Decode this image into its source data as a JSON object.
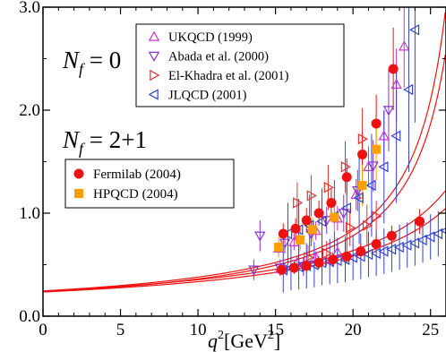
{
  "chart_data": {
    "type": "scatter",
    "xlabel": "q",
    "xlabel_sup": "2",
    "xlabel_unit_open": "[GeV",
    "xlabel_unit_sup": "2",
    "xlabel_unit_close": "]",
    "ylabel": "",
    "xlim": [
      0,
      26
    ],
    "ylim": [
      0,
      3.0
    ],
    "xticks": [
      0,
      5,
      10,
      15,
      20,
      25
    ],
    "xtick_labels": [
      "0",
      "5",
      "10",
      "15",
      "20",
      "25"
    ],
    "yticks": [
      0,
      1,
      2,
      3
    ],
    "ytick_labels": [
      "0.0",
      "1.0",
      "2.0",
      "3.0"
    ],
    "grid": false,
    "group_labels": {
      "nf0": {
        "main": "N",
        "sub": "f",
        "rest": " = 0"
      },
      "nf21": {
        "main": "N",
        "sub": "f",
        "rest": " = 2+1"
      }
    },
    "legend_top": {
      "position": "top-center",
      "items": [
        {
          "label": "UKQCD (1999)",
          "marker": "triangle-up",
          "color": "#cc33cc"
        },
        {
          "label": "Abada et al. (2000)",
          "marker": "triangle-down",
          "color": "#8833cc"
        },
        {
          "label": "El-Khadra et al. (2001)",
          "marker": "triangle-right",
          "color": "#e33333"
        },
        {
          "label": "JLQCD (2001)",
          "marker": "triangle-left",
          "color": "#3344cc"
        }
      ]
    },
    "legend_bottom": {
      "position": "center-left",
      "items": [
        {
          "label": "Fermilab (2004)",
          "marker": "circle",
          "color": "#ee1111"
        },
        {
          "label": "HPQCD (2004)",
          "marker": "square",
          "color": "#ffa000"
        }
      ]
    },
    "series": [
      {
        "name": "UKQCD (1999)",
        "marker": "triangle-up",
        "color": "#cc33cc",
        "points": [
          {
            "x": 15.2,
            "y": 0.66,
            "err": 0.07
          },
          {
            "x": 15.3,
            "y": 0.46,
            "err": 0.05
          },
          {
            "x": 16.2,
            "y": 0.72,
            "err": 0.08
          },
          {
            "x": 16.4,
            "y": 0.52,
            "err": 0.06
          },
          {
            "x": 17.6,
            "y": 0.83,
            "err": 0.09
          },
          {
            "x": 17.6,
            "y": 0.57,
            "err": 0.06
          },
          {
            "x": 19.0,
            "y": 0.95,
            "err": 0.12
          },
          {
            "x": 19.0,
            "y": 0.62,
            "err": 0.07
          },
          {
            "x": 20.2,
            "y": 1.18,
            "err": 0.15
          },
          {
            "x": 21.0,
            "y": 1.45,
            "err": 0.2
          },
          {
            "x": 22.0,
            "y": 1.75,
            "err": 0.25
          },
          {
            "x": 22.8,
            "y": 2.25,
            "err": 0.35
          },
          {
            "x": 23.3,
            "y": 2.62,
            "err": 0.4
          }
        ]
      },
      {
        "name": "Abada et al. (2000)",
        "marker": "triangle-down",
        "color": "#8833cc",
        "points": [
          {
            "x": 13.6,
            "y": 0.45,
            "err": 0.1
          },
          {
            "x": 14.0,
            "y": 0.78,
            "err": 0.15
          },
          {
            "x": 15.3,
            "y": 0.47,
            "err": 0.08
          },
          {
            "x": 15.6,
            "y": 0.71,
            "err": 0.1
          },
          {
            "x": 16.8,
            "y": 0.48,
            "err": 0.09
          },
          {
            "x": 17.3,
            "y": 0.8,
            "err": 0.12
          },
          {
            "x": 18.3,
            "y": 0.93,
            "err": 0.13
          },
          {
            "x": 19.4,
            "y": 1.0,
            "err": 0.18
          },
          {
            "x": 20.3,
            "y": 1.22,
            "err": 0.2
          },
          {
            "x": 21.3,
            "y": 1.46,
            "err": 0.25
          },
          {
            "x": 22.3,
            "y": 2.0,
            "err": 0.4
          }
        ]
      },
      {
        "name": "El-Khadra et al. (2001)",
        "marker": "triangle-right",
        "color": "#e33333",
        "points": [
          {
            "x": 16.4,
            "y": 1.1,
            "err": 0.2
          },
          {
            "x": 17.3,
            "y": 1.17,
            "err": 0.2
          },
          {
            "x": 18.4,
            "y": 1.25,
            "err": 0.22
          },
          {
            "x": 19.5,
            "y": 1.45,
            "err": 0.25
          },
          {
            "x": 20.6,
            "y": 1.72,
            "err": 0.3
          },
          {
            "x": 17.1,
            "y": 0.57,
            "err": 0.12
          },
          {
            "x": 18.3,
            "y": 0.61,
            "err": 0.12
          },
          {
            "x": 19.8,
            "y": 0.86,
            "err": 0.18
          },
          {
            "x": 20.9,
            "y": 0.88,
            "err": 0.2
          },
          {
            "x": 21.5,
            "y": 0.97,
            "err": 0.15
          }
        ]
      },
      {
        "name": "JLQCD (2001)",
        "marker": "triangle-left",
        "color": "#3344cc",
        "points": [
          {
            "x": 15.5,
            "y": 0.45,
            "err": 0.22
          },
          {
            "x": 16.0,
            "y": 0.47,
            "err": 0.22
          },
          {
            "x": 16.5,
            "y": 0.48,
            "err": 0.22
          },
          {
            "x": 17.0,
            "y": 0.49,
            "err": 0.22
          },
          {
            "x": 17.5,
            "y": 0.5,
            "err": 0.22
          },
          {
            "x": 18.0,
            "y": 0.52,
            "err": 0.22
          },
          {
            "x": 18.5,
            "y": 0.53,
            "err": 0.22
          },
          {
            "x": 19.0,
            "y": 0.54,
            "err": 0.22
          },
          {
            "x": 19.5,
            "y": 0.55,
            "err": 0.22
          },
          {
            "x": 20.0,
            "y": 0.57,
            "err": 0.22
          },
          {
            "x": 20.5,
            "y": 0.58,
            "err": 0.22
          },
          {
            "x": 21.0,
            "y": 0.6,
            "err": 0.22
          },
          {
            "x": 21.5,
            "y": 0.61,
            "err": 0.22
          },
          {
            "x": 22.0,
            "y": 0.63,
            "err": 0.22
          },
          {
            "x": 22.5,
            "y": 0.65,
            "err": 0.22
          },
          {
            "x": 23.0,
            "y": 0.67,
            "err": 0.22
          },
          {
            "x": 23.5,
            "y": 0.69,
            "err": 0.22
          },
          {
            "x": 24.0,
            "y": 0.71,
            "err": 0.22
          },
          {
            "x": 24.5,
            "y": 0.74,
            "err": 0.22
          },
          {
            "x": 25.0,
            "y": 0.77,
            "err": 0.22
          },
          {
            "x": 25.5,
            "y": 0.8,
            "err": 0.22
          },
          {
            "x": 26.0,
            "y": 0.83,
            "err": 0.22
          },
          {
            "x": 15.8,
            "y": 0.8,
            "err": 0.3
          },
          {
            "x": 16.5,
            "y": 0.84,
            "err": 0.3
          },
          {
            "x": 17.2,
            "y": 0.88,
            "err": 0.3
          },
          {
            "x": 18.0,
            "y": 0.92,
            "err": 0.32
          },
          {
            "x": 18.8,
            "y": 0.97,
            "err": 0.35
          },
          {
            "x": 19.6,
            "y": 1.05,
            "err": 0.4
          },
          {
            "x": 20.4,
            "y": 1.15,
            "err": 0.45
          },
          {
            "x": 21.2,
            "y": 1.27,
            "err": 0.5
          },
          {
            "x": 22.0,
            "y": 1.45,
            "err": 0.55
          },
          {
            "x": 22.8,
            "y": 1.75,
            "err": 0.65
          },
          {
            "x": 23.6,
            "y": 2.2,
            "err": 0.8
          },
          {
            "x": 24.0,
            "y": 2.78,
            "err": 0.9
          }
        ]
      },
      {
        "name": "Fermilab (2004)",
        "marker": "circle",
        "color": "#ee1111",
        "points": [
          {
            "x": 15.4,
            "y": 0.45,
            "err": 0.05
          },
          {
            "x": 15.5,
            "y": 0.8,
            "err": 0.1
          },
          {
            "x": 16.2,
            "y": 0.47,
            "err": 0.06
          },
          {
            "x": 16.3,
            "y": 0.85,
            "err": 0.1
          },
          {
            "x": 17.0,
            "y": 0.49,
            "err": 0.06
          },
          {
            "x": 17.0,
            "y": 0.93,
            "err": 0.12
          },
          {
            "x": 17.8,
            "y": 0.52,
            "err": 0.06
          },
          {
            "x": 17.8,
            "y": 1.0,
            "err": 0.12
          },
          {
            "x": 18.7,
            "y": 0.55,
            "err": 0.07
          },
          {
            "x": 18.6,
            "y": 1.1,
            "err": 0.14
          },
          {
            "x": 19.6,
            "y": 0.58,
            "err": 0.07
          },
          {
            "x": 19.6,
            "y": 1.35,
            "err": 0.18
          },
          {
            "x": 20.5,
            "y": 0.63,
            "err": 0.08
          },
          {
            "x": 20.6,
            "y": 1.57,
            "err": 0.22
          },
          {
            "x": 21.5,
            "y": 0.7,
            "err": 0.09
          },
          {
            "x": 21.5,
            "y": 1.87,
            "err": 0.28
          },
          {
            "x": 22.5,
            "y": 0.78,
            "err": 0.1
          },
          {
            "x": 22.6,
            "y": 2.4,
            "err": 0.4
          },
          {
            "x": 24.3,
            "y": 0.92,
            "err": 0.12
          }
        ]
      },
      {
        "name": "HPQCD (2004)",
        "marker": "square",
        "color": "#ffa000",
        "points": [
          {
            "x": 15.2,
            "y": 0.67,
            "err": 0.1
          },
          {
            "x": 16.6,
            "y": 0.74,
            "err": 0.1
          },
          {
            "x": 17.4,
            "y": 0.84,
            "err": 0.12
          },
          {
            "x": 18.8,
            "y": 0.96,
            "err": 0.14
          },
          {
            "x": 20.6,
            "y": 1.27,
            "err": 0.2
          },
          {
            "x": 21.5,
            "y": 1.62,
            "err": 0.3
          }
        ]
      }
    ],
    "curves": [
      {
        "type": "pole",
        "a": 0.245,
        "m2": 28.3,
        "color": "#ee1111"
      },
      {
        "type": "pole",
        "a": 0.235,
        "m2": 28.6,
        "color": "#ee1111"
      },
      {
        "type": "pole",
        "a": 0.245,
        "m2": 32.5,
        "color": "#ee1111"
      },
      {
        "type": "pole",
        "a": 0.235,
        "m2": 33.5,
        "color": "#ee1111"
      }
    ]
  }
}
